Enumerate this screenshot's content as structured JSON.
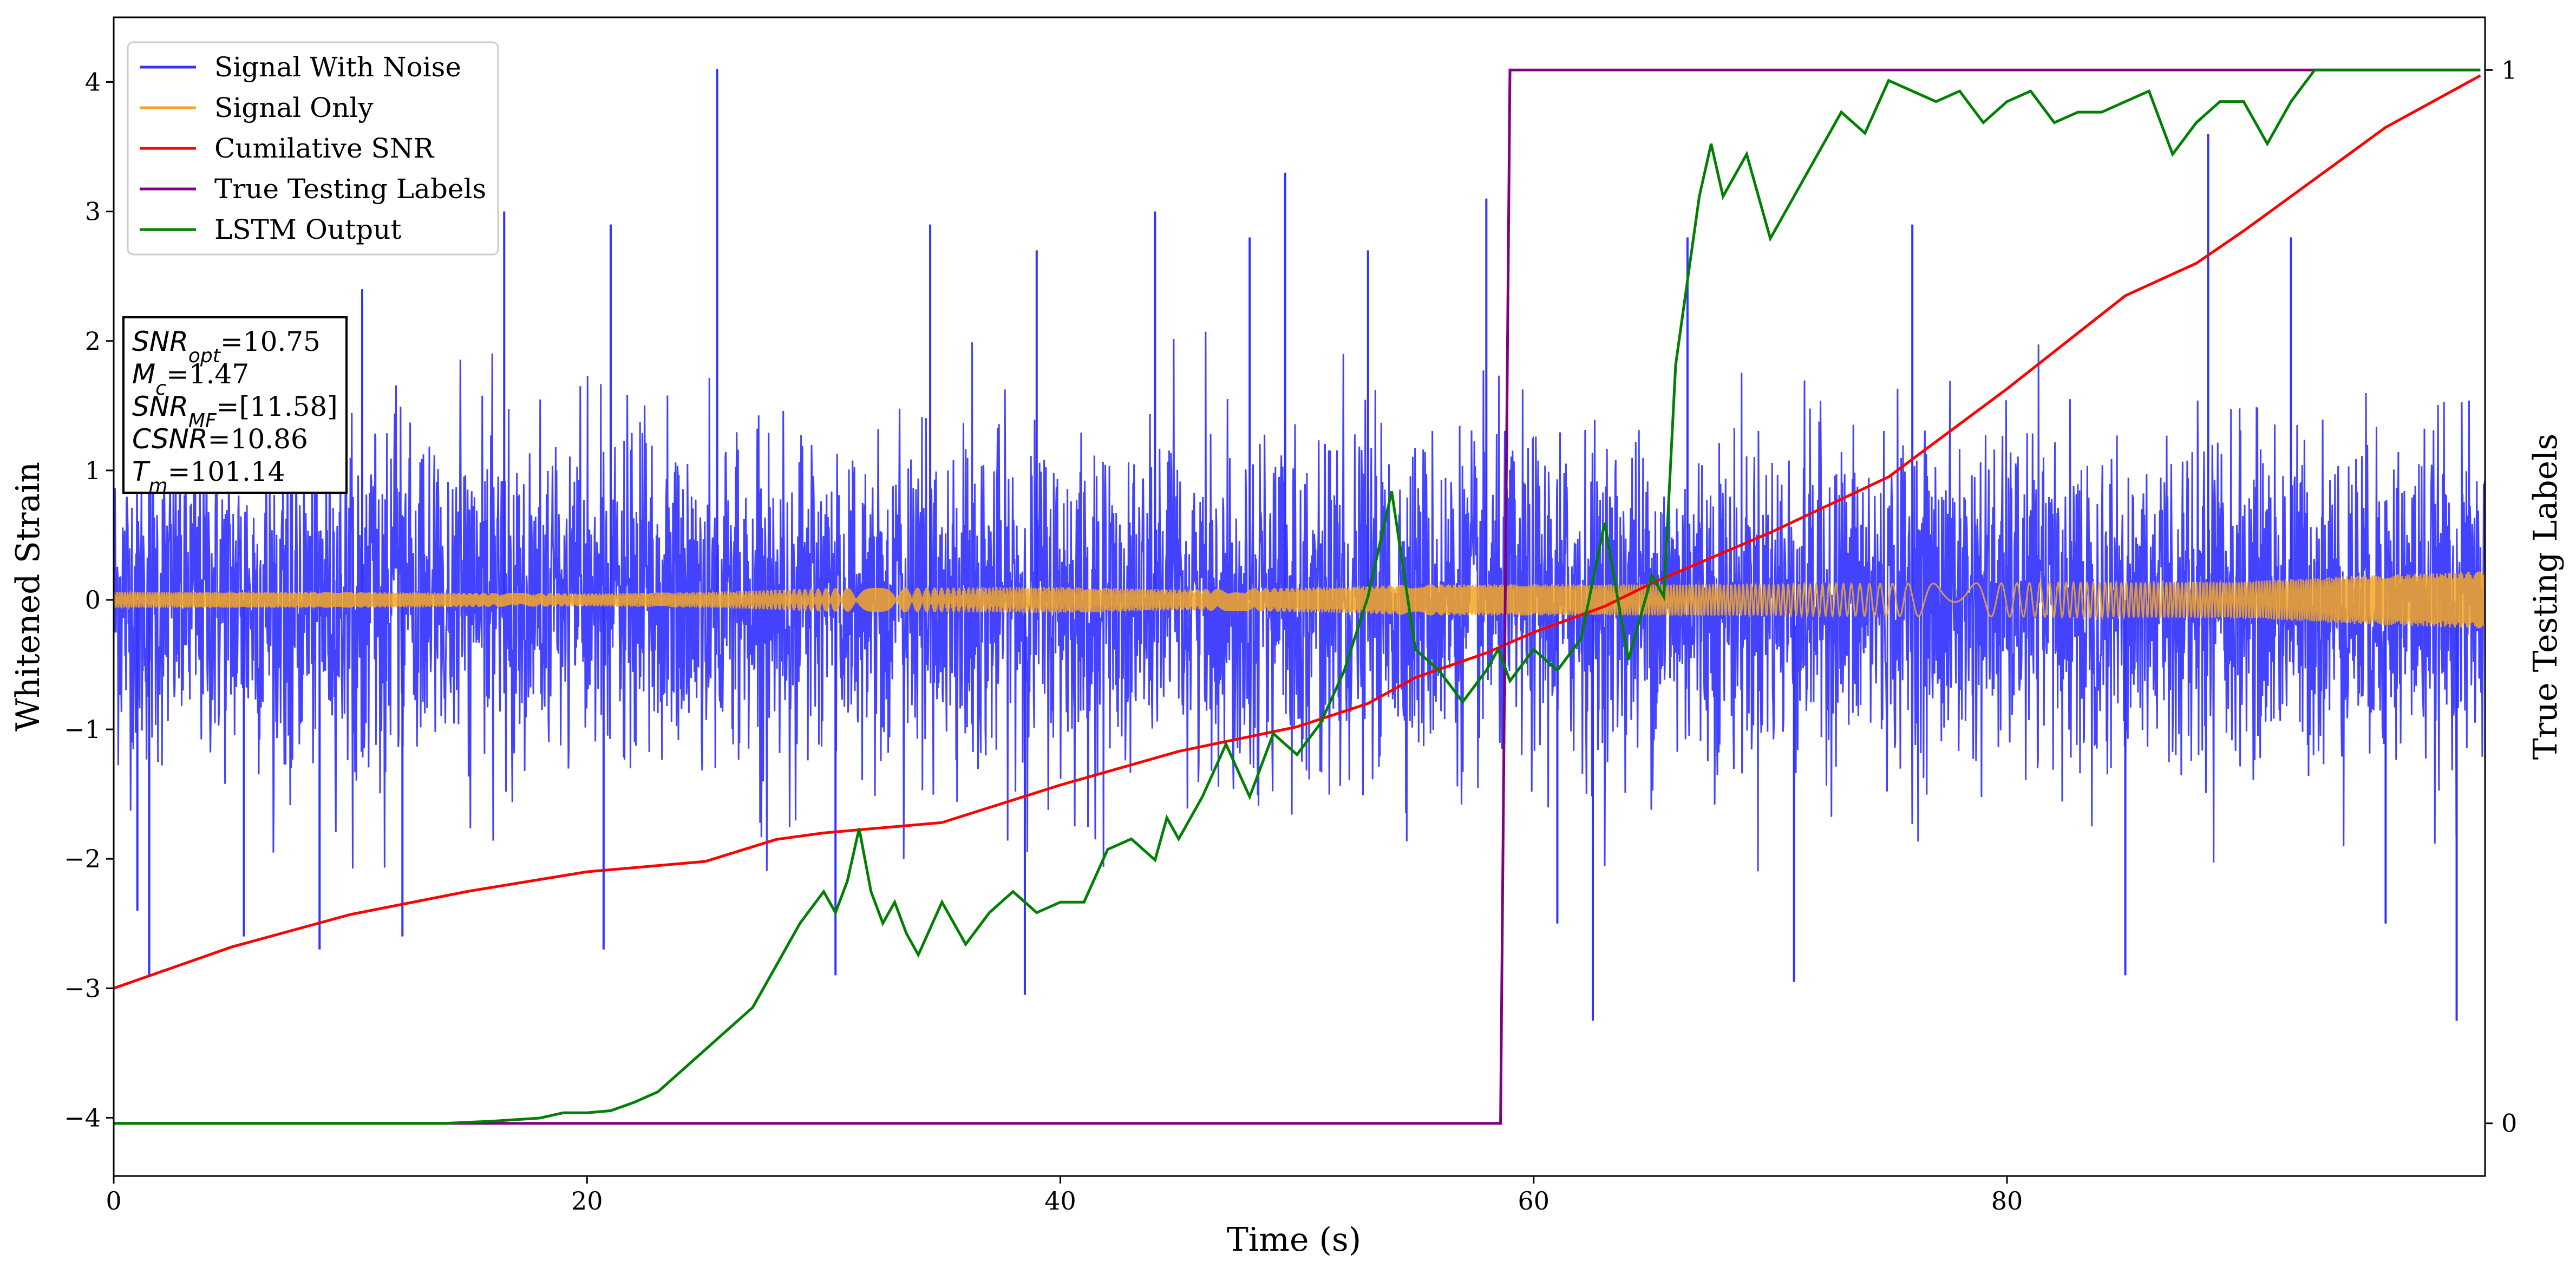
{
  "chart_data": {
    "type": "line",
    "xlabel": "Time (s)",
    "ylabel": "Whitened Strain",
    "ylabel_right": "True Testing Labels",
    "xlim": [
      0,
      100.2
    ],
    "ylim": [
      -4.45,
      4.5
    ],
    "ylim_right": [
      -0.05,
      1.05
    ],
    "x_ticks": [
      0,
      20,
      40,
      60,
      80
    ],
    "y_ticks": [
      -4,
      -3,
      -2,
      -1,
      0,
      1,
      2,
      3,
      4
    ],
    "y_ticks_right": [
      0,
      1
    ],
    "legend_position": "top-left",
    "grid": false,
    "series": [
      {
        "name": "Signal With Noise",
        "color": "#3333ff",
        "axis": "left",
        "description_points": {
          "x_range": [
            0,
            100.2
          ],
          "typical_abs_max": 2.0,
          "spikes": [
            [
              1.0,
              -2.4
            ],
            [
              1.5,
              -2.9
            ],
            [
              5.5,
              -2.6
            ],
            [
              8.7,
              -2.7
            ],
            [
              10.5,
              2.4
            ],
            [
              12.2,
              -2.6
            ],
            [
              16.5,
              3.0
            ],
            [
              20.7,
              -2.7
            ],
            [
              21.0,
              2.9
            ],
            [
              25.5,
              4.1
            ],
            [
              30.5,
              -2.9
            ],
            [
              34.5,
              2.9
            ],
            [
              39.0,
              2.7
            ],
            [
              38.5,
              -3.05
            ],
            [
              44.0,
              3.0
            ],
            [
              48.0,
              2.8
            ],
            [
              49.5,
              3.3
            ],
            [
              53.0,
              2.7
            ],
            [
              58.0,
              3.1
            ],
            [
              61.0,
              -2.5
            ],
            [
              62.5,
              -3.25
            ],
            [
              66.5,
              2.8
            ],
            [
              71.0,
              -2.95
            ],
            [
              76.0,
              2.9
            ],
            [
              85.0,
              -2.9
            ],
            [
              88.5,
              3.6
            ],
            [
              92.0,
              2.8
            ],
            [
              96.0,
              -2.5
            ],
            [
              99.0,
              -3.25
            ]
          ]
        }
      },
      {
        "name": "Signal Only",
        "color": "#f5a623",
        "axis": "left",
        "envelope": [
          [
            0,
            0.06
          ],
          [
            10,
            0.06
          ],
          [
            20,
            0.05
          ],
          [
            25,
            0.06
          ],
          [
            30,
            0.09
          ],
          [
            40,
            0.1
          ],
          [
            45,
            0.08
          ],
          [
            52,
            0.1
          ],
          [
            55,
            0.12
          ],
          [
            60,
            0.12
          ],
          [
            70,
            0.12
          ],
          [
            80,
            0.13
          ],
          [
            90,
            0.14
          ],
          [
            94,
            0.18
          ],
          [
            100,
            0.22
          ]
        ]
      },
      {
        "name": "Cumilative SNR",
        "color": "#ff0000",
        "axis": "left",
        "x": [
          0,
          5,
          10,
          15,
          20,
          25,
          28,
          30,
          35,
          40,
          45,
          50,
          53,
          55,
          58,
          60,
          63,
          65,
          70,
          75,
          80,
          85,
          88,
          90,
          93,
          96,
          100
        ],
        "y": [
          -3.0,
          -2.68,
          -2.43,
          -2.25,
          -2.1,
          -2.02,
          -1.85,
          -1.8,
          -1.72,
          -1.43,
          -1.17,
          -0.98,
          -0.8,
          -0.6,
          -0.41,
          -0.25,
          -0.05,
          0.13,
          0.52,
          0.95,
          1.63,
          2.35,
          2.6,
          2.85,
          3.25,
          3.65,
          4.05
        ]
      },
      {
        "name": "True Testing Labels",
        "color": "#800080",
        "axis": "right",
        "x": [
          0,
          58.6,
          59.0,
          100
        ],
        "y": [
          0,
          0,
          1,
          1
        ]
      },
      {
        "name": "LSTM Output",
        "color": "#008000",
        "axis": "right",
        "x": [
          0,
          14,
          16,
          18,
          19,
          20,
          21,
          22,
          23,
          24,
          25,
          26,
          27,
          28,
          29,
          30,
          30.5,
          31,
          31.5,
          32,
          32.5,
          33,
          33.5,
          34,
          35,
          36,
          37,
          38,
          39,
          40,
          41,
          42,
          43,
          44,
          44.5,
          45,
          46,
          47,
          48,
          49,
          50,
          51,
          52,
          53,
          53.5,
          54,
          55,
          56,
          57,
          58,
          58.5,
          59,
          60,
          61,
          62,
          63,
          64,
          65,
          65.5,
          66,
          67,
          67.5,
          68,
          69,
          70,
          71,
          72,
          73,
          74,
          75,
          76,
          77,
          78,
          79,
          80,
          81,
          82,
          83,
          84,
          85,
          86,
          87,
          88,
          89,
          90,
          91,
          92,
          93,
          95,
          100
        ],
        "y": [
          0,
          0,
          0.002,
          0.005,
          0.01,
          0.01,
          0.012,
          0.02,
          0.03,
          0.05,
          0.07,
          0.09,
          0.11,
          0.15,
          0.19,
          0.22,
          0.2,
          0.23,
          0.28,
          0.22,
          0.19,
          0.21,
          0.18,
          0.16,
          0.21,
          0.17,
          0.2,
          0.22,
          0.2,
          0.21,
          0.21,
          0.26,
          0.27,
          0.25,
          0.29,
          0.27,
          0.31,
          0.36,
          0.31,
          0.37,
          0.35,
          0.38,
          0.43,
          0.5,
          0.55,
          0.6,
          0.45,
          0.43,
          0.4,
          0.43,
          0.45,
          0.42,
          0.45,
          0.43,
          0.46,
          0.57,
          0.44,
          0.52,
          0.5,
          0.72,
          0.88,
          0.93,
          0.88,
          0.92,
          0.84,
          0.88,
          0.92,
          0.96,
          0.94,
          0.99,
          0.98,
          0.97,
          0.98,
          0.95,
          0.97,
          0.98,
          0.95,
          0.96,
          0.96,
          0.97,
          0.98,
          0.92,
          0.95,
          0.97,
          0.97,
          0.93,
          0.97,
          1.0,
          1.0,
          1.0
        ]
      }
    ],
    "annotation_box": {
      "lines": [
        {
          "pre": "SNR",
          "sub": "opt",
          "post": "=10.75"
        },
        {
          "pre": "M",
          "sub": "c",
          "post": "=1.47"
        },
        {
          "pre": "SNR",
          "sub": "MF",
          "post": "=[11.58]"
        },
        {
          "pre": "CSNR",
          "sub": "",
          "post": "=10.86"
        },
        {
          "pre": "T",
          "sub": "m",
          "post": "=101.14"
        }
      ]
    }
  }
}
